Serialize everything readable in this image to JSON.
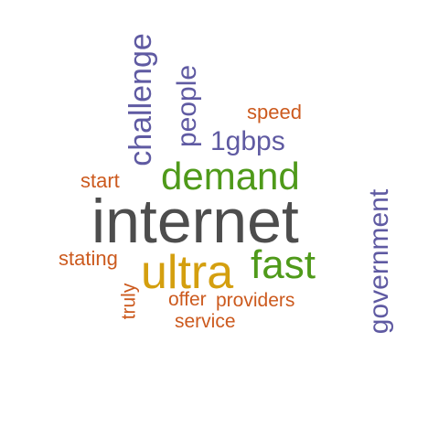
{
  "words": {
    "internet": {
      "text": "internet",
      "color": "#4d4d4d"
    },
    "ultra": {
      "text": "ultra",
      "color": "#d49f0f"
    },
    "fast": {
      "text": "fast",
      "color": "#4f9a1a"
    },
    "demand": {
      "text": "demand",
      "color": "#4f9a1a"
    },
    "challenge": {
      "text": "challenge",
      "color": "#5f5aa2"
    },
    "people": {
      "text": "people",
      "color": "#5f5aa2"
    },
    "gbps": {
      "text": "1gbps",
      "color": "#5f5aa2"
    },
    "government": {
      "text": "government",
      "color": "#5f5aa2"
    },
    "speed": {
      "text": "speed",
      "color": "#cc5a1e"
    },
    "start": {
      "text": "start",
      "color": "#cc5a1e"
    },
    "stating": {
      "text": "stating",
      "color": "#cc5a1e"
    },
    "truly": {
      "text": "truly",
      "color": "#cc5a1e"
    },
    "offer": {
      "text": "offer",
      "color": "#cc5a1e"
    },
    "providers": {
      "text": "providers",
      "color": "#cc5a1e"
    },
    "service": {
      "text": "service",
      "color": "#cc5a1e"
    }
  }
}
